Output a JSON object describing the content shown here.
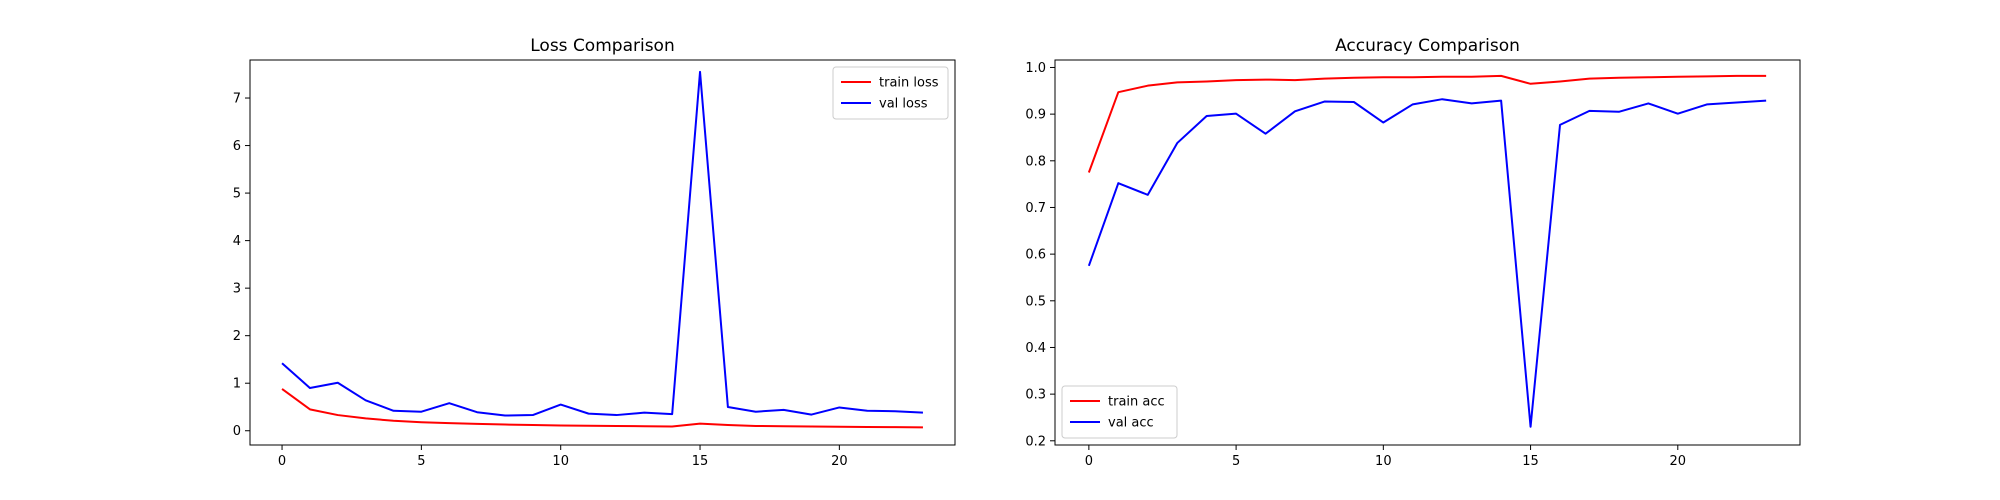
{
  "chart_data": [
    {
      "type": "line",
      "title": "Loss Comparison",
      "xlabel": "",
      "ylabel": "",
      "xlim": [
        -1.15,
        24.15
      ],
      "ylim": [
        -0.3,
        7.8
      ],
      "xticks": [
        0,
        5,
        10,
        15,
        20
      ],
      "yticks": [
        0,
        1,
        2,
        3,
        4,
        5,
        6,
        7
      ],
      "ytick_labels": [
        "0",
        "1",
        "2",
        "3",
        "4",
        "5",
        "6",
        "7"
      ],
      "legend_position": "upper right",
      "grid": false,
      "x": [
        0,
        1,
        2,
        3,
        4,
        5,
        6,
        7,
        8,
        9,
        10,
        11,
        12,
        13,
        14,
        15,
        16,
        17,
        18,
        19,
        20,
        21,
        22,
        23
      ],
      "series": [
        {
          "name": "train loss",
          "color": "#ff0000",
          "values": [
            0.88,
            0.45,
            0.33,
            0.26,
            0.21,
            0.18,
            0.16,
            0.145,
            0.13,
            0.12,
            0.11,
            0.105,
            0.1,
            0.095,
            0.09,
            0.15,
            0.12,
            0.1,
            0.095,
            0.09,
            0.085,
            0.08,
            0.075,
            0.07
          ]
        },
        {
          "name": "val loss",
          "color": "#0000ff",
          "values": [
            1.42,
            0.9,
            1.01,
            0.64,
            0.42,
            0.4,
            0.58,
            0.39,
            0.32,
            0.33,
            0.55,
            0.36,
            0.33,
            0.38,
            0.35,
            7.55,
            0.5,
            0.4,
            0.44,
            0.34,
            0.49,
            0.42,
            0.41,
            0.38
          ]
        }
      ]
    },
    {
      "type": "line",
      "title": "Accuracy Comparison",
      "xlabel": "",
      "ylabel": "",
      "xlim": [
        -1.15,
        24.15
      ],
      "ylim": [
        0.191,
        1.016
      ],
      "xticks": [
        0,
        5,
        10,
        15,
        20
      ],
      "yticks": [
        0.2,
        0.3,
        0.4,
        0.5,
        0.6,
        0.7,
        0.8,
        0.9,
        1.0
      ],
      "ytick_labels": [
        "0.2",
        "0.3",
        "0.4",
        "0.5",
        "0.6",
        "0.7",
        "0.8",
        "0.9",
        "1.0"
      ],
      "legend_position": "lower left",
      "grid": false,
      "x": [
        0,
        1,
        2,
        3,
        4,
        5,
        6,
        7,
        8,
        9,
        10,
        11,
        12,
        13,
        14,
        15,
        16,
        17,
        18,
        19,
        20,
        21,
        22,
        23
      ],
      "series": [
        {
          "name": "train acc",
          "color": "#ff0000",
          "values": [
            0.775,
            0.947,
            0.961,
            0.968,
            0.97,
            0.973,
            0.974,
            0.973,
            0.976,
            0.978,
            0.979,
            0.979,
            0.98,
            0.98,
            0.982,
            0.965,
            0.97,
            0.976,
            0.978,
            0.979,
            0.98,
            0.981,
            0.982,
            0.982
          ]
        },
        {
          "name": "val acc",
          "color": "#0000ff",
          "values": [
            0.575,
            0.752,
            0.727,
            0.838,
            0.896,
            0.901,
            0.858,
            0.906,
            0.927,
            0.926,
            0.882,
            0.921,
            0.932,
            0.923,
            0.929,
            0.23,
            0.877,
            0.907,
            0.905,
            0.923,
            0.901,
            0.921,
            0.925,
            0.929
          ]
        }
      ]
    }
  ]
}
